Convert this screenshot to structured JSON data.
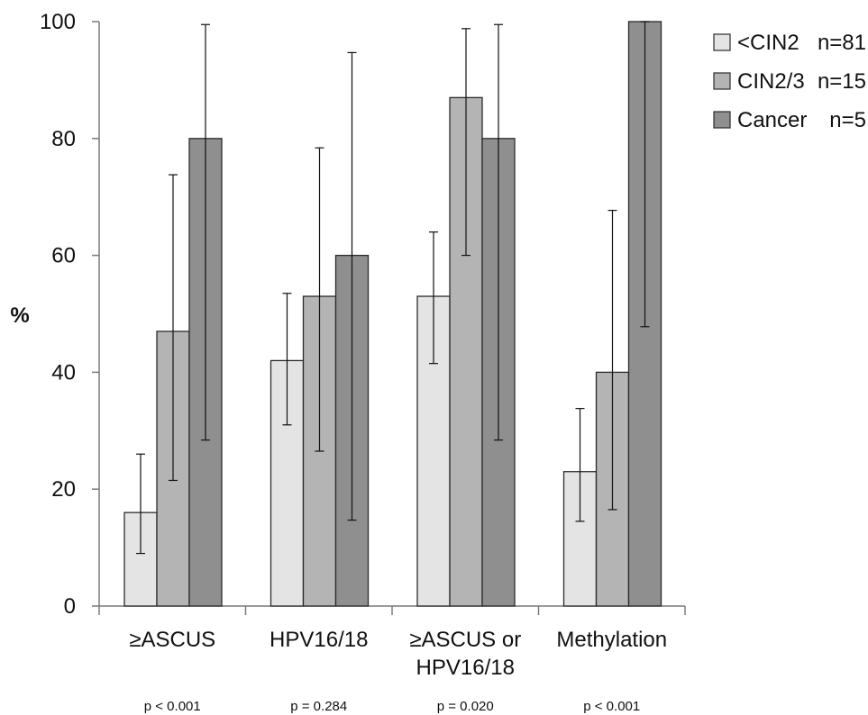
{
  "chart_data": {
    "type": "bar",
    "ylabel": "%",
    "ylim": [
      0,
      100
    ],
    "yticks": [
      0,
      20,
      40,
      60,
      80,
      100
    ],
    "categories": [
      [
        "≥ASCUS"
      ],
      [
        "HPV16/18"
      ],
      [
        "≥ASCUS or",
        "HPV16/18"
      ],
      [
        "Methylation"
      ]
    ],
    "pvalues": [
      "p < 0.001",
      "p = 0.284",
      "p = 0.020",
      "p < 0.001"
    ],
    "series": [
      {
        "name": "<CIN2",
        "n_label": "n=81",
        "color": "#e4e4e4",
        "values": [
          16,
          42,
          53,
          23
        ],
        "ci_low": [
          9,
          31,
          41.5,
          14.5
        ],
        "ci_high": [
          26,
          53.5,
          64,
          33.8
        ]
      },
      {
        "name": "CIN2/3",
        "n_label": "n=15",
        "color": "#b4b4b4",
        "values": [
          47,
          53,
          87,
          40
        ],
        "ci_low": [
          21.5,
          26.5,
          60,
          16.5
        ],
        "ci_high": [
          73.8,
          78.4,
          98.8,
          67.7
        ]
      },
      {
        "name": "Cancer",
        "n_label": "n=5",
        "color": "#8f8f8f",
        "values": [
          80,
          60,
          80,
          100
        ],
        "ci_low": [
          28.4,
          14.7,
          28.4,
          47.8
        ],
        "ci_high": [
          99.5,
          94.7,
          99.5,
          100
        ]
      }
    ],
    "legend_position": "top-right",
    "grid": false
  }
}
